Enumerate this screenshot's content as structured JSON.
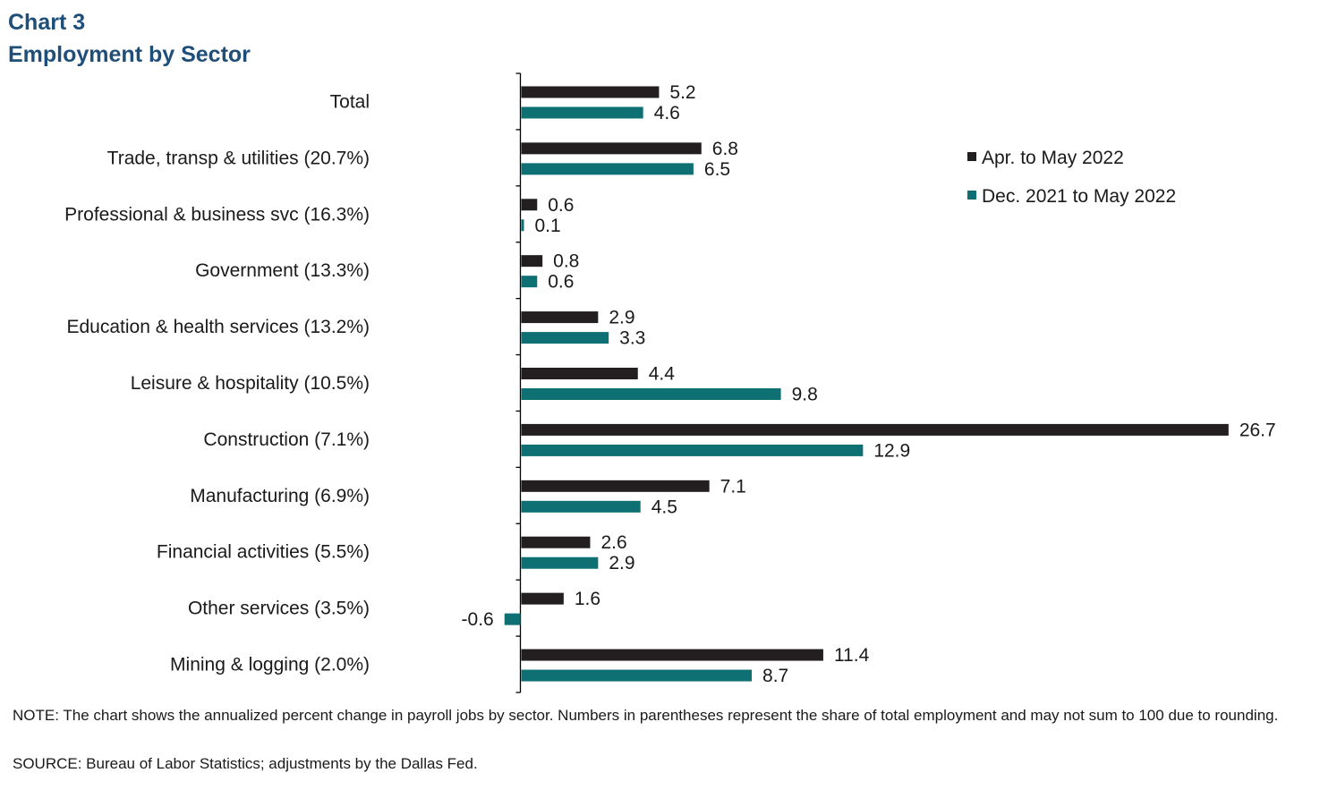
{
  "header": {
    "chart_number": "Chart 3",
    "title": "Employment by Sector"
  },
  "footer": {
    "note": "NOTE: The chart shows the annualized  percent change in payroll jobs by sector. Numbers in parentheses represent the share of total employment and may not sum to 100 due to rounding.",
    "source": "SOURCE:  Bureau of Labor Statistics; adjustments by the Dallas Fed."
  },
  "colors": {
    "title": "#1f4e79",
    "series_1": "#231f20",
    "series_2": "#0e7073",
    "axis": "#000000"
  },
  "chart_data": {
    "type": "bar",
    "orientation": "horizontal",
    "title": "Employment by Sector",
    "categories": [
      "Total",
      "Trade, transp & utilities (20.7%)",
      "Professional & business svc (16.3%)",
      "Government (13.3%)",
      "Education & health services (13.2%)",
      "Leisure & hospitality (10.5%)",
      "Construction (7.1%)",
      "Manufacturing (6.9%)",
      "Financial activities (5.5%)",
      "Other services (3.5%)",
      "Mining & logging (2.0%)"
    ],
    "series": [
      {
        "name": "Apr. to May 2022",
        "color": "#231f20",
        "values": [
          5.2,
          6.8,
          0.6,
          0.8,
          2.9,
          4.4,
          26.7,
          7.1,
          2.6,
          1.6,
          11.4
        ]
      },
      {
        "name": "Dec. 2021 to May 2022",
        "color": "#0e7073",
        "values": [
          4.6,
          6.5,
          0.1,
          0.6,
          3.3,
          9.8,
          12.9,
          4.5,
          2.9,
          -0.6,
          8.7
        ]
      }
    ],
    "data_labels": true,
    "legend_position": "top-right",
    "grid": false,
    "xlim": [
      -0.6,
      26.7
    ]
  }
}
